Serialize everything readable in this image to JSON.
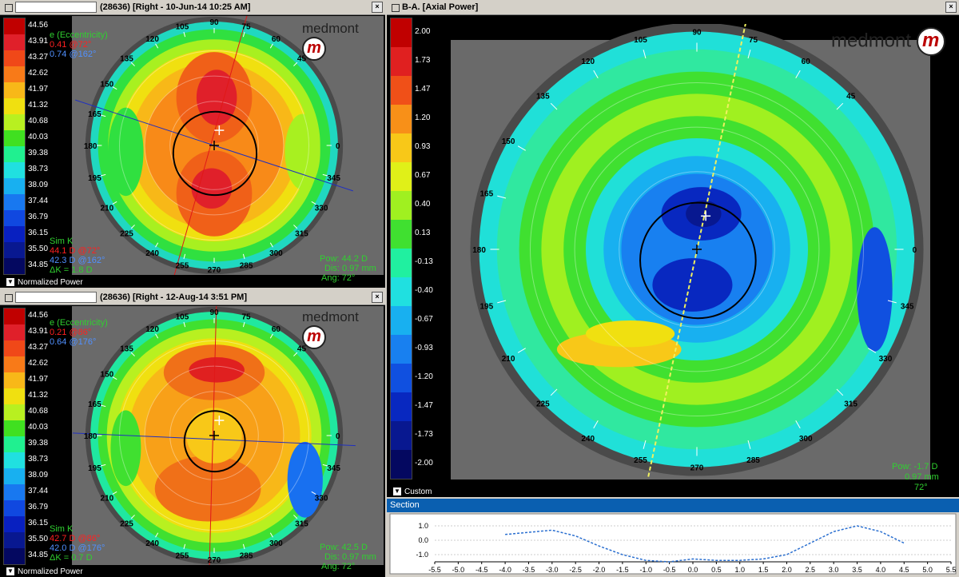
{
  "left_scale": [
    {
      "label": "44.56",
      "color": "#c00000"
    },
    {
      "label": "43.91",
      "color": "#e0202a"
    },
    {
      "label": "43.27",
      "color": "#f04818"
    },
    {
      "label": "42.62",
      "color": "#f87a18"
    },
    {
      "label": "41.97",
      "color": "#f8b818"
    },
    {
      "label": "41.32",
      "color": "#f0e010"
    },
    {
      "label": "40.68",
      "color": "#b8f020"
    },
    {
      "label": "40.03",
      "color": "#40e020"
    },
    {
      "label": "39.38",
      "color": "#20f090"
    },
    {
      "label": "38.73",
      "color": "#20e0e0"
    },
    {
      "label": "38.09",
      "color": "#18b0f0"
    },
    {
      "label": "37.44",
      "color": "#1878f0"
    },
    {
      "label": "36.79",
      "color": "#1048e0"
    },
    {
      "label": "36.15",
      "color": "#0820c0"
    },
    {
      "label": "35.50",
      "color": "#081890"
    },
    {
      "label": "34.85",
      "color": "#040860"
    }
  ],
  "right_scale": [
    {
      "label": "2.00",
      "color": "#c00000"
    },
    {
      "label": "1.73",
      "color": "#e02020"
    },
    {
      "label": "1.47",
      "color": "#f05018"
    },
    {
      "label": "1.20",
      "color": "#f89018"
    },
    {
      "label": "0.93",
      "color": "#f8c818"
    },
    {
      "label": "0.67",
      "color": "#e0f018"
    },
    {
      "label": "0.40",
      "color": "#a0f020"
    },
    {
      "label": "0.13",
      "color": "#40e030"
    },
    {
      "label": "-0.13",
      "color": "#20f0a0"
    },
    {
      "label": "-0.40",
      "color": "#20e0e0"
    },
    {
      "label": "-0.67",
      "color": "#18b0f0"
    },
    {
      "label": "-0.93",
      "color": "#1880f0"
    },
    {
      "label": "-1.20",
      "color": "#1050e0"
    },
    {
      "label": "-1.47",
      "color": "#0828c0"
    },
    {
      "label": "-1.73",
      "color": "#081890"
    },
    {
      "label": "-2.00",
      "color": "#040860"
    }
  ],
  "top_panel": {
    "title": "(28636) [Right - 10-Jun-14 10:25 AM]",
    "close": "×",
    "logo": "medmont",
    "logo_mark": "m",
    "ecc_header": "e (Eccentricity)",
    "ecc_1": "0.41 @72°",
    "ecc_2": "0.74 @162°",
    "simk_header": "Sim K",
    "simk_1": "44.1 D @72°",
    "simk_2": "42.3 D @162°",
    "delta_k": "ΔK = 1.8 D",
    "pow": "Pow: 44.2 D",
    "dis": "Dis: 0.97 mm",
    "ang": "Ang: 72°",
    "bottom_label": "Normalized Power",
    "angles": [
      "105",
      "90",
      "75",
      "60",
      "45",
      "0",
      "345",
      "330",
      "315",
      "300",
      "285",
      "270",
      "255",
      "240",
      "225",
      "210",
      "195",
      "180",
      "165",
      "150",
      "135",
      "120"
    ]
  },
  "bottom_panel": {
    "title": "(28636) [Right - 12-Aug-14 3:51 PM]",
    "close": "×",
    "logo": "medmont",
    "logo_mark": "m",
    "ecc_header": "e (Eccentricity)",
    "ecc_1": "0.21 @86°",
    "ecc_2": "0.64 @176°",
    "simk_header": "Sim K",
    "simk_1": "42.7 D @86°",
    "simk_2": "42.0 D @176°",
    "delta_k": "ΔK = 0.7 D",
    "pow": "Pow: 42.5 D",
    "dis": "Dis: 0.97 mm",
    "ang": "Ang: 72°",
    "bottom_label": "Normalized Power",
    "angles": [
      "105",
      "90",
      "75",
      "60",
      "45",
      "0",
      "345",
      "330",
      "315",
      "300",
      "285",
      "270",
      "255",
      "240",
      "225",
      "210",
      "195",
      "180",
      "165",
      "150",
      "135",
      "120"
    ]
  },
  "right_panel": {
    "title": "B-A. [Axial Power]",
    "close": "×",
    "logo": "medmont",
    "logo_mark": "m",
    "pow": "Pow: -1.7 D",
    "dis": "0.97 mm",
    "ang": "72°",
    "bottom_label": "Custom",
    "angles": [
      "105",
      "90",
      "75",
      "60",
      "45",
      "0",
      "345",
      "330",
      "315",
      "300",
      "285",
      "270",
      "255",
      "240",
      "225",
      "210",
      "195",
      "180",
      "165",
      "150",
      "135",
      "120"
    ]
  },
  "section": {
    "title": "Section",
    "y_ticks": [
      "1.0",
      "0.0",
      "-1.0"
    ],
    "x_ticks": [
      "-5.5",
      "-5.0",
      "-4.5",
      "-4.0",
      "-3.5",
      "-3.0",
      "-2.5",
      "-2.0",
      "-1.5",
      "-1.0",
      "-0.5",
      "0.0",
      "0.5",
      "1.0",
      "1.5",
      "2.0",
      "2.5",
      "3.0",
      "3.5",
      "4.0",
      "4.5",
      "5.0",
      "5.5"
    ]
  },
  "colors": {
    "red_text": "#ff2020",
    "blue_text": "#5090ff",
    "green_text": "#30d030"
  }
}
